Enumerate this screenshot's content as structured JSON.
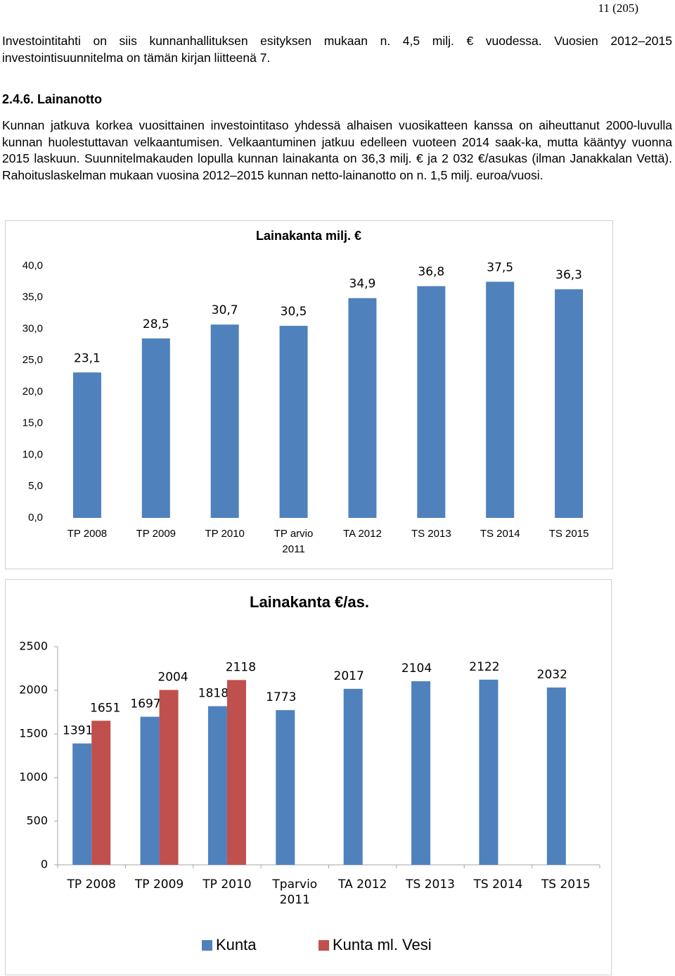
{
  "page_number": "11 (205)",
  "paragraphs": [
    "Investointitahti on siis kunnanhallituksen esityksen mukaan n. 4,5 milj. € vuodessa. Vuosien 2012–2015 investointisuunnitelma on tämän kirjan liitteenä 7.",
    "Kunnan jatkuva korkea vuosittainen investointitaso yhdessä alhaisen vuosikatteen kanssa on aiheuttanut 2000-luvulla kunnan huolestuttavan velkaantumisen. Velkaantuminen jatkuu edelleen vuoteen 2014 saak-ka, mutta kääntyy vuonna 2015 laskuun. Suunnitelmakauden lopulla kunnan lainakanta on 36,3 milj. € ja 2 032 €/asukas (ilman Janakkalan Vettä). Rahoituslaskelman mukaan vuosina 2012–2015 kunnan netto-lainanotto on n. 1,5 milj. euroa/vuosi."
  ],
  "heading": "2.4.6. Lainanotto",
  "chart_data": [
    {
      "type": "bar",
      "title": "Lainakanta milj. €",
      "categories": [
        "TP 2008",
        "TP 2009",
        "TP 2010",
        "TP arvio 2011",
        "TA 2012",
        "TS 2013",
        "TS 2014",
        "TS 2015"
      ],
      "values": [
        23.1,
        28.5,
        30.7,
        30.5,
        34.9,
        36.8,
        37.5,
        36.3
      ],
      "value_labels": [
        "23,1",
        "28,5",
        "30,7",
        "30,5",
        "34,9",
        "36,8",
        "37,5",
        "36,3"
      ],
      "color": "#4f81bd",
      "ylim": [
        0,
        40
      ],
      "yticks": [
        {
          "value": 0,
          "label": "0,0"
        },
        {
          "value": 5,
          "label": "5,0"
        },
        {
          "value": 10,
          "label": "10,0"
        },
        {
          "value": 15,
          "label": "15,0"
        },
        {
          "value": 20,
          "label": "20,0"
        },
        {
          "value": 25,
          "label": "25,0"
        },
        {
          "value": 30,
          "label": "30,0"
        },
        {
          "value": 35,
          "label": "35,0"
        },
        {
          "value": 40,
          "label": "40,0"
        }
      ],
      "grid": false
    },
    {
      "type": "bar",
      "title": "Lainakanta €/as.",
      "categories": [
        "TP 2008",
        "TP 2009",
        "TP 2010",
        "Tparvio 2011",
        "TA 2012",
        "TS 2013",
        "TS 2014",
        "TS 2015"
      ],
      "series": [
        {
          "name": "Kunta",
          "color": "#4f81bd",
          "values": [
            1391,
            1697,
            1818,
            1773,
            2017,
            2104,
            2122,
            2032
          ]
        },
        {
          "name": "Kunta ml. Vesi",
          "color": "#c0504d",
          "values": [
            1651,
            2004,
            2118,
            null,
            null,
            null,
            null,
            null
          ]
        }
      ],
      "ylim": [
        0,
        2500
      ],
      "yticks": [
        0,
        500,
        1000,
        1500,
        2000,
        2500
      ],
      "grid": false,
      "legend": "bottom"
    }
  ]
}
